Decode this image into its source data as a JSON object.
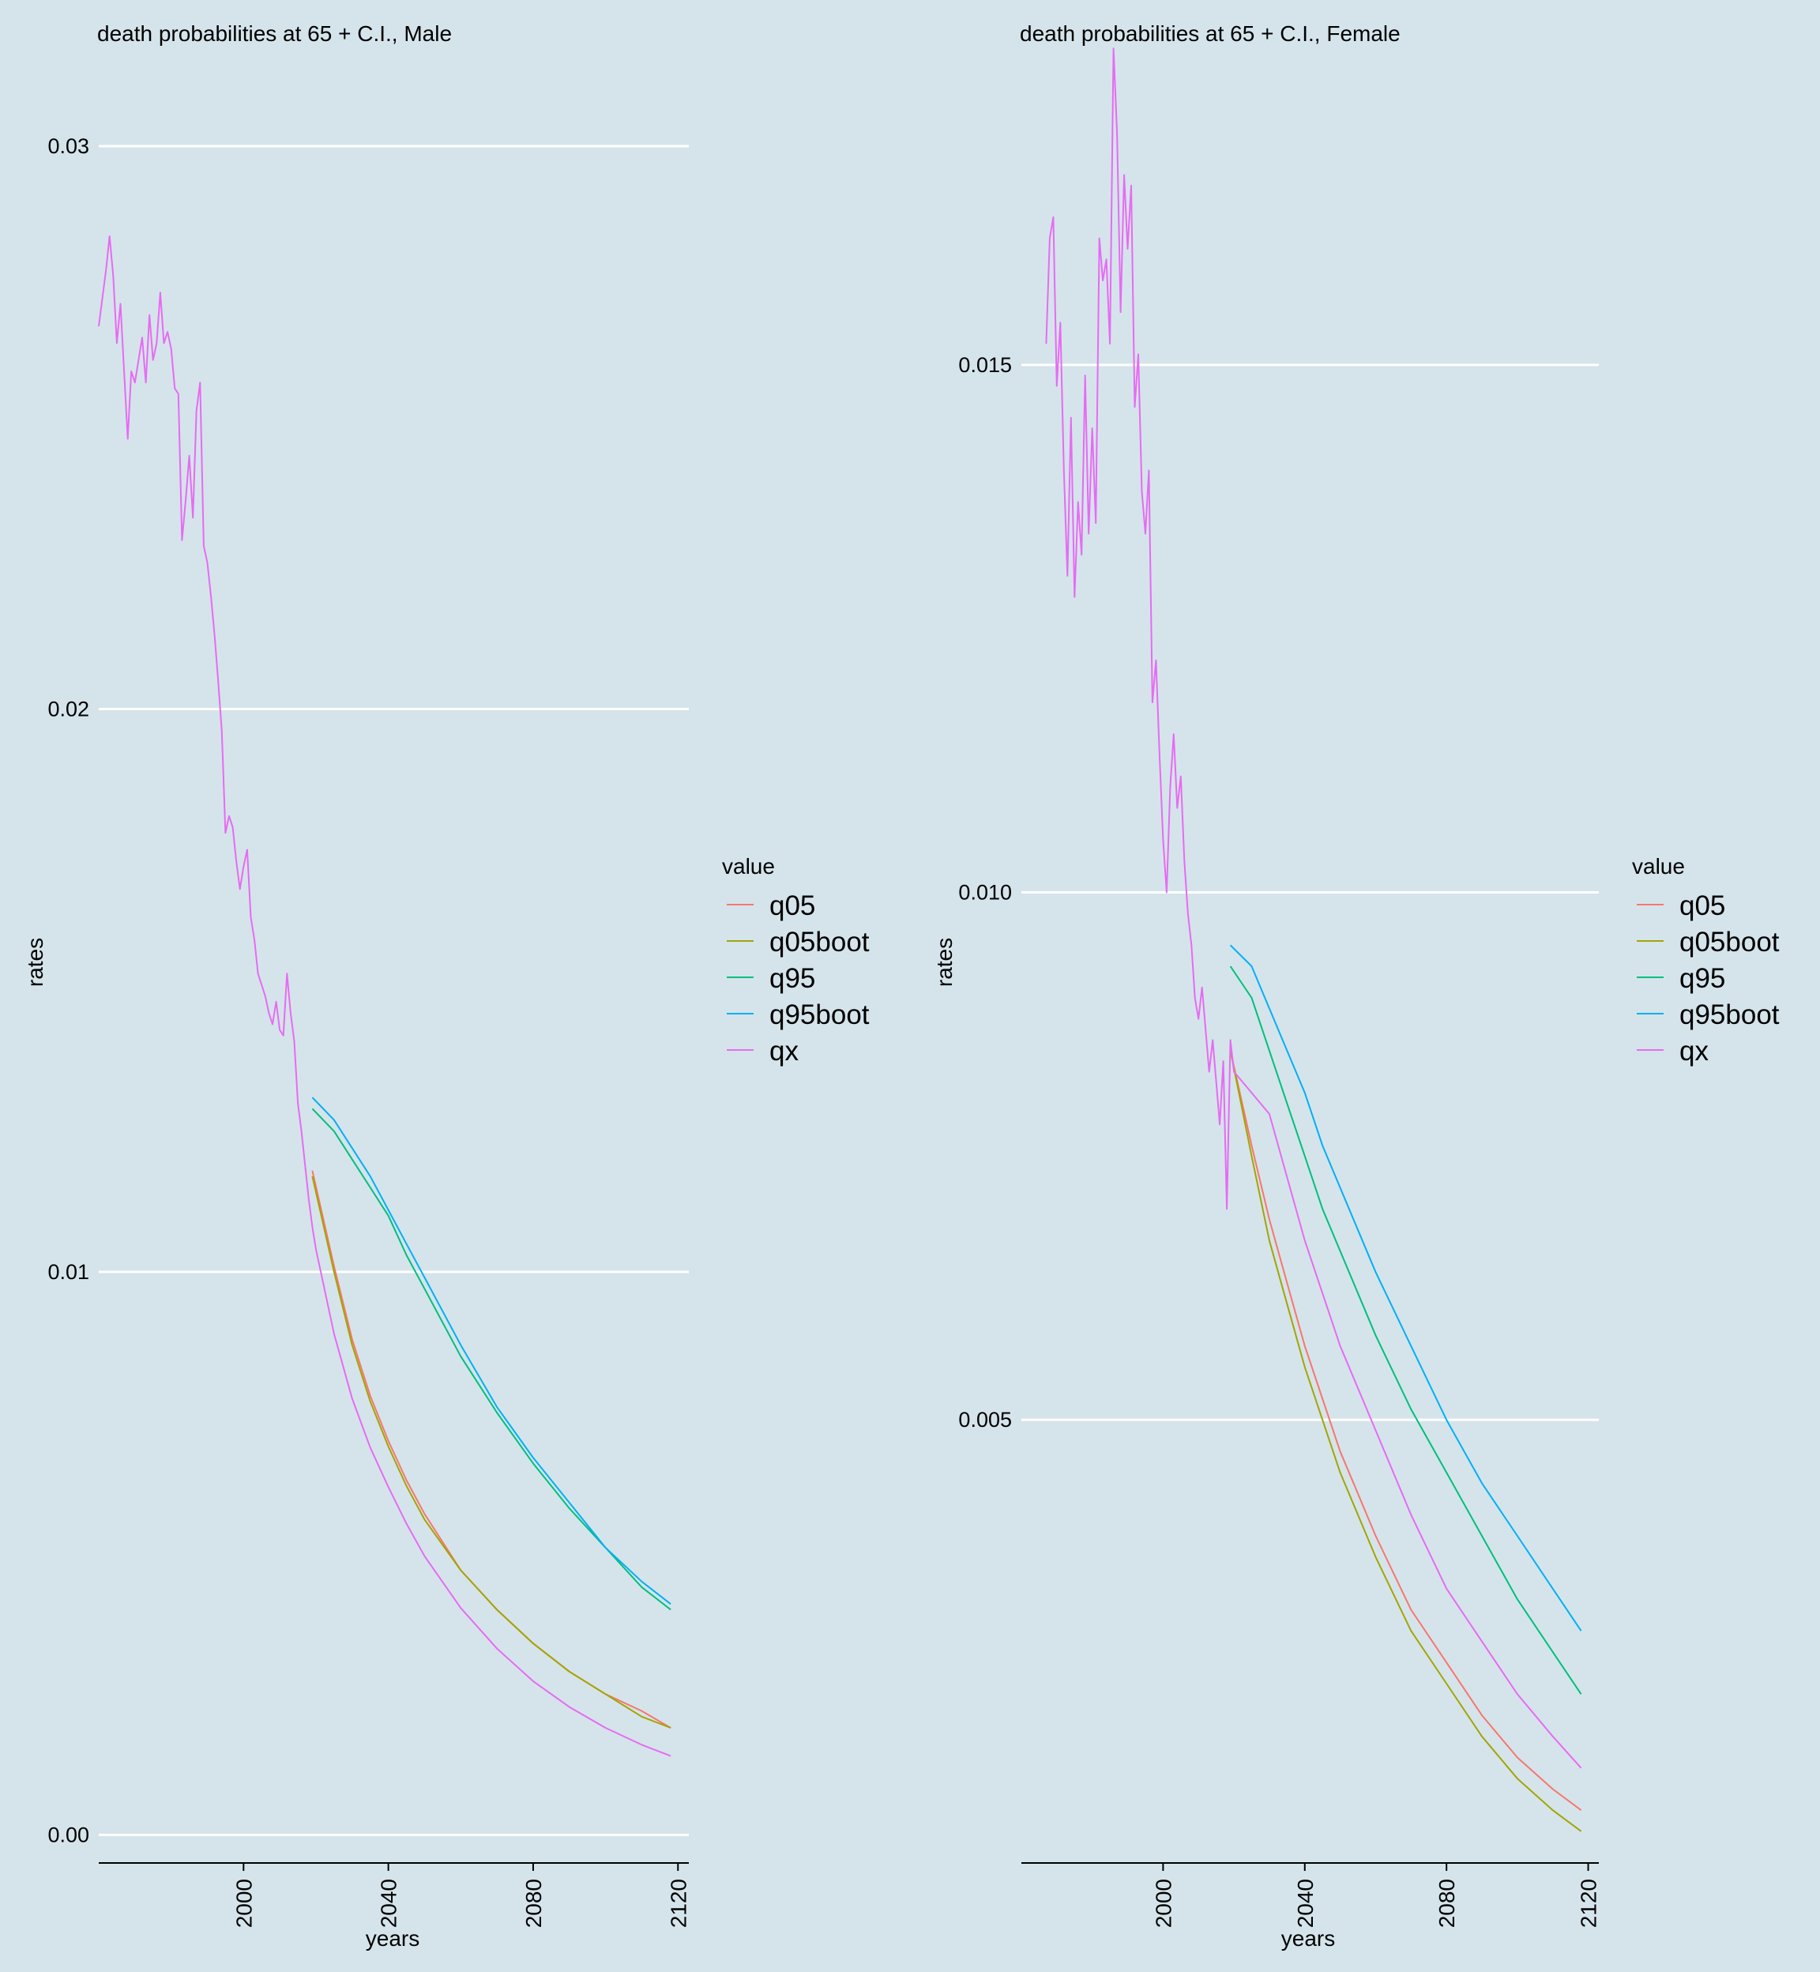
{
  "colors": {
    "background": "#d5e4eb",
    "grid": "#ffffff",
    "q05": "#F8766D",
    "q05boot": "#A3A500",
    "q95": "#00BF7D",
    "q95boot": "#00B0F6",
    "qx": "#E76BF3"
  },
  "chart_data": [
    {
      "type": "line",
      "title": "death probabilities at 65 + C.I., Male",
      "xlabel": "years",
      "ylabel": "rates",
      "xlim": [
        1960,
        2123
      ],
      "ylim": [
        -0.0005,
        0.0308
      ],
      "xticks": [
        2000,
        2040,
        2080,
        2120
      ],
      "xtick_labels": [
        "2000",
        "2040",
        "2080",
        "2120"
      ],
      "yticks": [
        0,
        0.01,
        0.02,
        0.03
      ],
      "ytick_labels": [
        "0.00",
        "0.01",
        "0.02",
        "0.03"
      ],
      "grid": "horizontal only",
      "legend": {
        "title": "value",
        "position": "right",
        "entries": [
          "q05",
          "q05boot",
          "q95",
          "q95boot",
          "qx"
        ]
      },
      "series": [
        {
          "name": "qx",
          "x": [
            1960,
            1962,
            1963,
            1964,
            1965,
            1966,
            1967,
            1968,
            1969,
            1970,
            1971,
            1972,
            1973,
            1974,
            1975,
            1976,
            1977,
            1978,
            1979,
            1980,
            1981,
            1982,
            1983,
            1984,
            1985,
            1986,
            1987,
            1988,
            1989,
            1990,
            1991,
            1992,
            1993,
            1994,
            1995,
            1996,
            1997,
            1998,
            1999,
            2000,
            2001,
            2002,
            2003,
            2004,
            2005,
            2006,
            2007,
            2008,
            2009,
            2010,
            2011,
            2012,
            2013,
            2014,
            2015,
            2016,
            2017,
            2018,
            2019,
            2020,
            2025,
            2030,
            2035,
            2040,
            2045,
            2050,
            2060,
            2070,
            2080,
            2090,
            2100,
            2110,
            2118
          ],
          "y": [
            0.0268,
            0.0278,
            0.0284,
            0.0277,
            0.0265,
            0.0272,
            0.026,
            0.0248,
            0.026,
            0.0258,
            0.0262,
            0.0266,
            0.0258,
            0.027,
            0.0262,
            0.0265,
            0.0274,
            0.0265,
            0.0267,
            0.0264,
            0.0257,
            0.0256,
            0.023,
            0.0237,
            0.0245,
            0.0234,
            0.0253,
            0.0258,
            0.0229,
            0.0226,
            0.022,
            0.0213,
            0.0205,
            0.0196,
            0.0178,
            0.0181,
            0.0179,
            0.0173,
            0.0168,
            0.0172,
            0.0175,
            0.0163,
            0.0159,
            0.0153,
            0.0151,
            0.0149,
            0.0146,
            0.0144,
            0.0148,
            0.0143,
            0.0142,
            0.0153,
            0.0146,
            0.0141,
            0.013,
            0.0125,
            0.0119,
            0.0113,
            0.0108,
            0.0104,
            0.0089,
            0.00775,
            0.00688,
            0.00618,
            0.00553,
            0.00495,
            0.00403,
            0.00331,
            0.00273,
            0.00227,
            0.0019,
            0.0016,
            0.0014
          ]
        },
        {
          "name": "q05",
          "x": [
            2019,
            2025,
            2030,
            2035,
            2040,
            2045,
            2050,
            2060,
            2070,
            2080,
            2090,
            2100,
            2110,
            2118
          ],
          "y": [
            0.0118,
            0.0101,
            0.0088,
            0.0078,
            0.007,
            0.0063,
            0.0057,
            0.0047,
            0.004,
            0.0034,
            0.0029,
            0.0025,
            0.0022,
            0.0019
          ]
        },
        {
          "name": "q05boot",
          "x": [
            2019,
            2025,
            2030,
            2035,
            2040,
            2045,
            2050,
            2060,
            2070,
            2080,
            2090,
            2100,
            2110,
            2118
          ],
          "y": [
            0.0117,
            0.01,
            0.0087,
            0.0077,
            0.0069,
            0.0062,
            0.0056,
            0.0047,
            0.004,
            0.0034,
            0.0029,
            0.0025,
            0.0021,
            0.0019
          ]
        },
        {
          "name": "q95",
          "x": [
            2019,
            2025,
            2030,
            2035,
            2040,
            2045,
            2050,
            2060,
            2070,
            2080,
            2090,
            2100,
            2110,
            2118
          ],
          "y": [
            0.0129,
            0.0125,
            0.012,
            0.0115,
            0.011,
            0.0103,
            0.0097,
            0.0085,
            0.0075,
            0.0066,
            0.0058,
            0.0051,
            0.0044,
            0.004
          ]
        },
        {
          "name": "q95boot",
          "x": [
            2019,
            2025,
            2030,
            2035,
            2040,
            2045,
            2050,
            2060,
            2070,
            2080,
            2090,
            2100,
            2110,
            2118
          ],
          "y": [
            0.0131,
            0.0127,
            0.0122,
            0.0117,
            0.0111,
            0.0105,
            0.0099,
            0.0087,
            0.0076,
            0.0067,
            0.0059,
            0.0051,
            0.0045,
            0.0041
          ]
        }
      ]
    },
    {
      "type": "line",
      "title": "death probabilities at 65 + C.I., Female",
      "xlabel": "years",
      "ylabel": "rates",
      "xlim": [
        1960,
        2123
      ],
      "ylim": [
        0.0008,
        0.0175
      ],
      "xticks": [
        2000,
        2040,
        2080,
        2120
      ],
      "xtick_labels": [
        "2000",
        "2040",
        "2080",
        "2120"
      ],
      "yticks": [
        0.005,
        0.01,
        0.015
      ],
      "ytick_labels": [
        "0.005",
        "0.010",
        "0.015"
      ],
      "grid": "horizontal only",
      "legend": {
        "title": "value",
        "position": "right",
        "entries": [
          "q05",
          "q05boot",
          "q95",
          "q95boot",
          "qx"
        ]
      },
      "series": [
        {
          "name": "qx",
          "x": [
            1967,
            1968,
            1969,
            1970,
            1971,
            1972,
            1973,
            1974,
            1975,
            1976,
            1977,
            1978,
            1979,
            1980,
            1981,
            1982,
            1983,
            1984,
            1985,
            1986,
            1987,
            1988,
            1989,
            1990,
            1991,
            1992,
            1993,
            1994,
            1995,
            1996,
            1997,
            1998,
            1999,
            2000,
            2001,
            2002,
            2003,
            2004,
            2005,
            2006,
            2007,
            2008,
            2009,
            2010,
            2011,
            2012,
            2013,
            2014,
            2015,
            2016,
            2017,
            2018,
            2019,
            2020,
            2030,
            2040,
            2050,
            2060,
            2070,
            2080,
            2090,
            2100,
            2110,
            2118
          ],
          "y": [
            0.0152,
            0.0162,
            0.0164,
            0.0148,
            0.0154,
            0.014,
            0.013,
            0.0145,
            0.0128,
            0.0137,
            0.0132,
            0.0149,
            0.0134,
            0.0144,
            0.0135,
            0.0162,
            0.0158,
            0.016,
            0.0152,
            0.018,
            0.0172,
            0.0155,
            0.0168,
            0.0161,
            0.0167,
            0.0146,
            0.0151,
            0.0138,
            0.0134,
            0.014,
            0.0118,
            0.0122,
            0.0113,
            0.0105,
            0.01,
            0.011,
            0.0115,
            0.0108,
            0.0111,
            0.0103,
            0.0098,
            0.0095,
            0.009,
            0.0088,
            0.0091,
            0.0087,
            0.0083,
            0.0086,
            0.0082,
            0.0078,
            0.0084,
            0.007,
            0.0086,
            0.0083,
            0.0079,
            0.0067,
            0.0057,
            0.0049,
            0.0041,
            0.0034,
            0.0029,
            0.0024,
            0.002,
            0.0017
          ]
        },
        {
          "name": "q05",
          "x": [
            2019,
            2025,
            2030,
            2035,
            2040,
            2045,
            2050,
            2060,
            2070,
            2080,
            2090,
            2100,
            2110,
            2118
          ],
          "y": [
            0.0085,
            0.0076,
            0.0069,
            0.0063,
            0.0057,
            0.0052,
            0.0047,
            0.0039,
            0.0032,
            0.0027,
            0.0022,
            0.0018,
            0.0015,
            0.0013
          ]
        },
        {
          "name": "q05boot",
          "x": [
            2019,
            2025,
            2030,
            2035,
            2040,
            2045,
            2050,
            2060,
            2070,
            2080,
            2090,
            2100,
            2110,
            2118
          ],
          "y": [
            0.0085,
            0.0075,
            0.0067,
            0.0061,
            0.0055,
            0.005,
            0.0045,
            0.0037,
            0.003,
            0.0025,
            0.002,
            0.0016,
            0.0013,
            0.0011
          ]
        },
        {
          "name": "q95",
          "x": [
            2019,
            2025,
            2030,
            2035,
            2040,
            2045,
            2050,
            2060,
            2070,
            2080,
            2090,
            2100,
            2110,
            2118
          ],
          "y": [
            0.0093,
            0.009,
            0.0085,
            0.008,
            0.0075,
            0.007,
            0.0066,
            0.0058,
            0.0051,
            0.0045,
            0.0039,
            0.0033,
            0.0028,
            0.0024
          ]
        },
        {
          "name": "q95boot",
          "x": [
            2019,
            2025,
            2030,
            2035,
            2040,
            2045,
            2050,
            2060,
            2070,
            2080,
            2090,
            2100,
            2110,
            2118
          ],
          "y": [
            0.0095,
            0.0093,
            0.0089,
            0.0085,
            0.0081,
            0.0076,
            0.0072,
            0.0064,
            0.0057,
            0.005,
            0.0044,
            0.0039,
            0.0034,
            0.003
          ]
        }
      ]
    }
  ]
}
